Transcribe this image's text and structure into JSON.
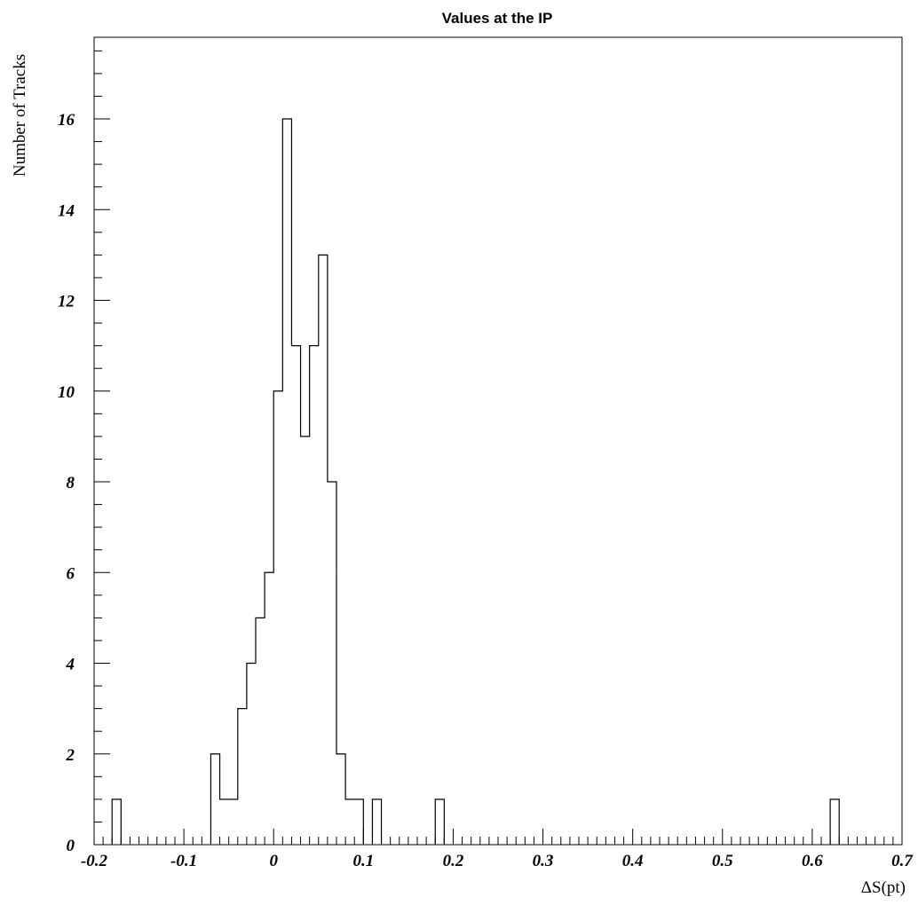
{
  "chart_data": {
    "type": "histogram",
    "title": "Values at the IP",
    "xlabel": "ΔS(pt)",
    "ylabel": "Number of Tracks",
    "xlim": [
      -0.2,
      0.7
    ],
    "ylim": [
      0,
      17.8
    ],
    "grid": false,
    "legend": "none",
    "bin_width": 0.01,
    "x_ticks": [
      {
        "value": -0.2,
        "label": "-0.2"
      },
      {
        "value": -0.1,
        "label": "-0.1"
      },
      {
        "value": 0,
        "label": "0"
      },
      {
        "value": 0.1,
        "label": "0.1"
      },
      {
        "value": 0.2,
        "label": "0.2"
      },
      {
        "value": 0.3,
        "label": "0.3"
      },
      {
        "value": 0.4,
        "label": "0.4"
      },
      {
        "value": 0.5,
        "label": "0.5"
      },
      {
        "value": 0.6,
        "label": "0.6"
      },
      {
        "value": 0.7,
        "label": "0.7"
      }
    ],
    "y_ticks": [
      {
        "value": 0,
        "label": "0"
      },
      {
        "value": 2,
        "label": "2"
      },
      {
        "value": 4,
        "label": "4"
      },
      {
        "value": 6,
        "label": "6"
      },
      {
        "value": 8,
        "label": "8"
      },
      {
        "value": 10,
        "label": "10"
      },
      {
        "value": 12,
        "label": "12"
      },
      {
        "value": 14,
        "label": "14"
      },
      {
        "value": 16,
        "label": "16"
      }
    ],
    "bins": [
      {
        "x": -0.18,
        "count": 1
      },
      {
        "x": -0.07,
        "count": 2
      },
      {
        "x": -0.06,
        "count": 1
      },
      {
        "x": -0.05,
        "count": 1
      },
      {
        "x": -0.04,
        "count": 3
      },
      {
        "x": -0.03,
        "count": 4
      },
      {
        "x": -0.02,
        "count": 5
      },
      {
        "x": -0.01,
        "count": 6
      },
      {
        "x": 0.0,
        "count": 10
      },
      {
        "x": 0.01,
        "count": 16
      },
      {
        "x": 0.02,
        "count": 11
      },
      {
        "x": 0.03,
        "count": 9
      },
      {
        "x": 0.04,
        "count": 11
      },
      {
        "x": 0.05,
        "count": 13
      },
      {
        "x": 0.06,
        "count": 8
      },
      {
        "x": 0.07,
        "count": 2
      },
      {
        "x": 0.08,
        "count": 1
      },
      {
        "x": 0.09,
        "count": 1
      },
      {
        "x": 0.11,
        "count": 1
      },
      {
        "x": 0.18,
        "count": 1
      },
      {
        "x": 0.62,
        "count": 1
      }
    ]
  }
}
